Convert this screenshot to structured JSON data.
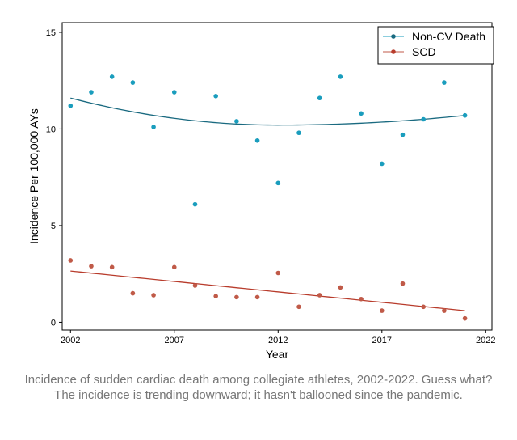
{
  "chart_data": {
    "type": "scatter",
    "title": "",
    "xlabel": "Year",
    "ylabel": "Incidence Per 100,000 AYs",
    "xlim": [
      2001.6,
      2022.3
    ],
    "ylim": [
      -0.4,
      15.5
    ],
    "x_ticks": [
      2002,
      2007,
      2012,
      2017,
      2022
    ],
    "y_ticks": [
      0,
      5,
      10,
      15
    ],
    "grid": false,
    "legend_position": "top-right",
    "series": [
      {
        "name": "Non-CV Death",
        "color": "#1a9dbd",
        "line_color": "#1a6a80",
        "x": [
          2002,
          2003,
          2004,
          2005,
          2006,
          2007,
          2008,
          2009,
          2010,
          2011,
          2012,
          2013,
          2014,
          2015,
          2016,
          2017,
          2018,
          2019,
          2020,
          2021
        ],
        "y": [
          11.2,
          11.9,
          12.7,
          12.4,
          10.1,
          11.9,
          6.1,
          11.7,
          10.4,
          9.4,
          7.2,
          9.8,
          11.6,
          12.7,
          10.8,
          8.2,
          9.7,
          10.5,
          12.4,
          10.7
        ],
        "trend": {
          "kind": "quadratic",
          "start": 11.6,
          "min_x": 2012,
          "min_y": 10.2,
          "end": 10.7
        }
      },
      {
        "name": "SCD",
        "color": "#c05a48",
        "line_color": "#b83c2c",
        "x": [
          2002,
          2003,
          2004,
          2005,
          2006,
          2007,
          2008,
          2009,
          2010,
          2011,
          2012,
          2013,
          2014,
          2015,
          2016,
          2017,
          2018,
          2019,
          2020,
          2021
        ],
        "y": [
          3.2,
          2.9,
          2.85,
          1.5,
          1.4,
          2.85,
          1.9,
          1.35,
          1.3,
          1.3,
          2.55,
          0.8,
          1.4,
          1.8,
          1.2,
          0.6,
          2.0,
          0.8,
          0.6,
          0.2
        ],
        "trend": {
          "kind": "linear",
          "start": 2.65,
          "end": 0.6
        }
      }
    ]
  },
  "caption": "Incidence of sudden cardiac death among collegiate athletes, 2002-2022. Guess what? The incidence is trending downward; it hasn't ballooned since the pandemic."
}
